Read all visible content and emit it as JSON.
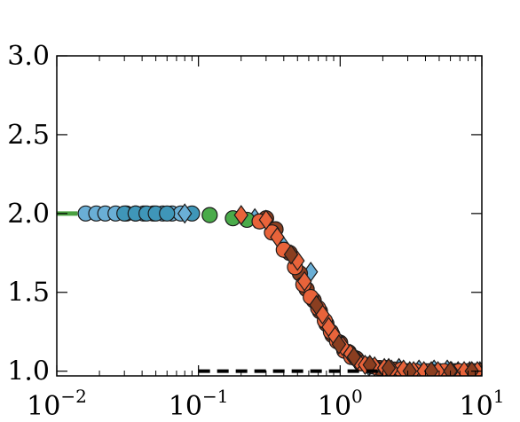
{
  "chart_data": {
    "type": "scatter",
    "title": "",
    "xlabel": "",
    "ylabel": "",
    "x_scale": "log",
    "xlim": [
      0.01,
      10
    ],
    "ylim": [
      0.97,
      3.0
    ],
    "grid": false,
    "x_ticks": [
      {
        "value": 0.01,
        "base": "10",
        "exp": "−2"
      },
      {
        "value": 0.1,
        "base": "10",
        "exp": "−1"
      },
      {
        "value": 1,
        "base": "10",
        "exp": "0"
      },
      {
        "value": 10,
        "base": "10",
        "exp": "1"
      }
    ],
    "y_ticks": [
      {
        "value": 1.0,
        "label": "1.0"
      },
      {
        "value": 1.5,
        "label": "1.5"
      },
      {
        "value": 2.0,
        "label": "2.0"
      },
      {
        "value": 2.5,
        "label": "2.5"
      },
      {
        "value": 3.0,
        "label": "3.0"
      }
    ],
    "colors": {
      "blue": "#6aafd6",
      "teal": "#3f96b8",
      "green": "#4aab4a",
      "orange": "#e8633a",
      "brown": "#8a3e20",
      "line": "#4aa040",
      "dash": "#000000"
    },
    "series": [
      {
        "marker": "line",
        "color": "#4aa040",
        "x": [
          0.01,
          0.014
        ],
        "y": [
          2.0,
          2.0
        ]
      },
      {
        "marker": "circle",
        "color": "#6aafd6",
        "x": [
          0.016,
          0.019,
          0.022,
          0.026,
          0.031,
          0.036,
          0.041,
          0.048,
          0.056,
          0.065,
          0.075
        ],
        "y": [
          2.0,
          2.0,
          2.0,
          2.0,
          2.0,
          2.0,
          2.0,
          2.0,
          2.0,
          2.0,
          2.0
        ]
      },
      {
        "marker": "circle",
        "color": "#3f96b8",
        "x": [
          0.03,
          0.036,
          0.043,
          0.05,
          0.06,
          0.09
        ],
        "y": [
          2.0,
          2.0,
          2.0,
          2.0,
          2.0,
          2.0
        ]
      },
      {
        "marker": "diamond",
        "color": "#6aafd6",
        "x": [
          0.08,
          0.25,
          0.4,
          0.62,
          1.6,
          2.6,
          3.6,
          4.6,
          5.7,
          6.8,
          8.2,
          9.7
        ],
        "y": [
          2.0,
          1.97,
          1.79,
          1.63,
          1.03,
          1.02,
          1.01,
          1.01,
          1.01,
          1.0,
          1.0,
          1.0
        ]
      },
      {
        "marker": "circle",
        "color": "#4aab4a",
        "x": [
          0.12,
          0.175,
          0.22
        ],
        "y": [
          1.99,
          1.97,
          1.96
        ]
      },
      {
        "marker": "circle",
        "color": "#8a3e20",
        "x": [
          0.3,
          0.35,
          0.44,
          0.52,
          0.58,
          0.65,
          0.72,
          0.8,
          0.88,
          1.0,
          1.15,
          1.3,
          1.55,
          1.9,
          2.4,
          3.0,
          4.0,
          5.0,
          6.5,
          8.0,
          9.8
        ],
        "y": [
          1.97,
          1.9,
          1.75,
          1.62,
          1.52,
          1.45,
          1.38,
          1.3,
          1.23,
          1.18,
          1.12,
          1.08,
          1.04,
          1.02,
          1.01,
          1.0,
          1.0,
          1.0,
          1.0,
          1.0,
          1.0
        ]
      },
      {
        "marker": "circle",
        "color": "#e8633a",
        "x": [
          0.27,
          0.33,
          0.4,
          0.48,
          0.55,
          0.62,
          0.7,
          0.78,
          0.86,
          0.95,
          1.07,
          1.2,
          1.4,
          1.7,
          2.1,
          2.7,
          3.4,
          4.3,
          5.4,
          6.9,
          8.8
        ],
        "y": [
          1.95,
          1.88,
          1.77,
          1.66,
          1.55,
          1.47,
          1.4,
          1.32,
          1.25,
          1.19,
          1.13,
          1.09,
          1.05,
          1.03,
          1.02,
          1.01,
          1.0,
          1.0,
          1.0,
          1.0,
          1.0
        ]
      },
      {
        "marker": "diamond",
        "color": "#e8633a",
        "x": [
          0.2,
          0.3,
          0.36,
          0.5,
          0.56,
          0.75,
          0.83,
          0.92,
          1.04,
          1.18,
          1.32,
          1.5,
          1.75,
          2.05,
          2.3,
          2.8,
          3.3,
          3.9,
          4.9,
          6.1,
          7.5,
          9.3
        ],
        "y": [
          1.99,
          1.96,
          1.85,
          1.7,
          1.57,
          1.36,
          1.28,
          1.22,
          1.16,
          1.11,
          1.07,
          1.04,
          1.03,
          1.02,
          1.01,
          1.01,
          1.0,
          1.0,
          1.0,
          1.0,
          1.0,
          1.0
        ]
      },
      {
        "marker": "diamond",
        "color": "#8a3e20",
        "x": [
          0.45,
          0.68,
          0.98,
          1.25,
          1.62,
          2.2,
          3.1,
          4.4,
          6.0,
          8.5
        ],
        "y": [
          1.74,
          1.42,
          1.17,
          1.09,
          1.04,
          1.02,
          1.0,
          1.0,
          1.0,
          1.0
        ]
      },
      {
        "marker": "dashed",
        "color": "#000000",
        "x": [
          0.1,
          2.0
        ],
        "y": [
          1.0,
          1.0
        ]
      }
    ]
  }
}
